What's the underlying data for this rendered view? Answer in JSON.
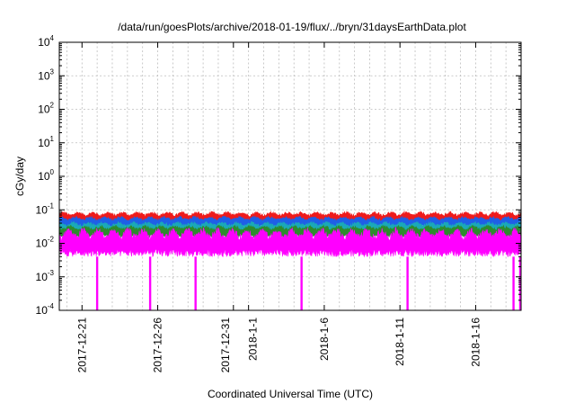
{
  "chart_data": {
    "type": "line",
    "title": "/data/run/goesPlots/archive/2018-01-19/flux/../bryn/31daysEarthData.plot",
    "xlabel": "Coordinated Universal Time (UTC)",
    "ylabel": "cGy/day",
    "y_scale": "log",
    "ylim": [
      0.0001,
      10000
    ],
    "y_ticks": [
      {
        "base": "10",
        "exp": "4",
        "value": 10000
      },
      {
        "base": "10",
        "exp": "3",
        "value": 1000
      },
      {
        "base": "10",
        "exp": "2",
        "value": 100
      },
      {
        "base": "10",
        "exp": "1",
        "value": 10
      },
      {
        "base": "10",
        "exp": "0",
        "value": 1
      },
      {
        "base": "10",
        "exp": "-1",
        "value": 0.1
      },
      {
        "base": "10",
        "exp": "-2",
        "value": 0.01
      },
      {
        "base": "10",
        "exp": "-3",
        "value": 0.001
      },
      {
        "base": "10",
        "exp": "-4",
        "value": 0.0001
      }
    ],
    "xlim": [
      "2017-12-19T12:00",
      "2018-01-19T00:00"
    ],
    "x_tick_dates": [
      "2017-12-21",
      "2017-12-26",
      "2017-12-31",
      "2018-01-01",
      "2018-01-06",
      "2018-01-11",
      "2018-01-16"
    ],
    "x_tick_labels": [
      {
        "text": "2017-12-21",
        "date": "2017-12-21"
      },
      {
        "text": "2017-12-26",
        "date": "2017-12-26"
      },
      {
        "text": "2017-12-31",
        "date": "2017-12-31"
      },
      {
        "text": "2018-1-1",
        "date": "2018-01-01"
      },
      {
        "text": "2018-1-6",
        "date": "2018-01-06"
      },
      {
        "text": "2018-1-11",
        "date": "2018-01-11"
      },
      {
        "text": "2018-1-16",
        "date": "2018-01-16"
      }
    ],
    "x_minor_grid_days": 1,
    "grid": true,
    "series": [
      {
        "color": "#ee1b1b",
        "typical_range": [
          0.04,
          0.09
        ]
      },
      {
        "color": "#1f5fe6",
        "typical_range": [
          0.03,
          0.065
        ]
      },
      {
        "color": "#1aa9b8",
        "typical_range": [
          0.02,
          0.045
        ]
      },
      {
        "color": "#2e8b2e",
        "typical_range": [
          0.015,
          0.035
        ]
      },
      {
        "color": "#ff00ff",
        "typical_range": [
          0.004,
          0.03
        ]
      }
    ],
    "dropouts": [
      {
        "date": "2017-12-22T00:00",
        "min_value": 0.0001
      },
      {
        "date": "2017-12-25T12:00",
        "min_value": 0.0001
      },
      {
        "date": "2017-12-28T12:00",
        "min_value": 0.0001
      },
      {
        "date": "2018-01-04T12:00",
        "min_value": 0.0001
      },
      {
        "date": "2018-01-11T12:00",
        "min_value": 0.0001
      },
      {
        "date": "2018-01-18T12:00",
        "min_value": 0.0001
      },
      {
        "date": "2018-01-19T00:00",
        "min_value": 0.0001
      }
    ]
  }
}
